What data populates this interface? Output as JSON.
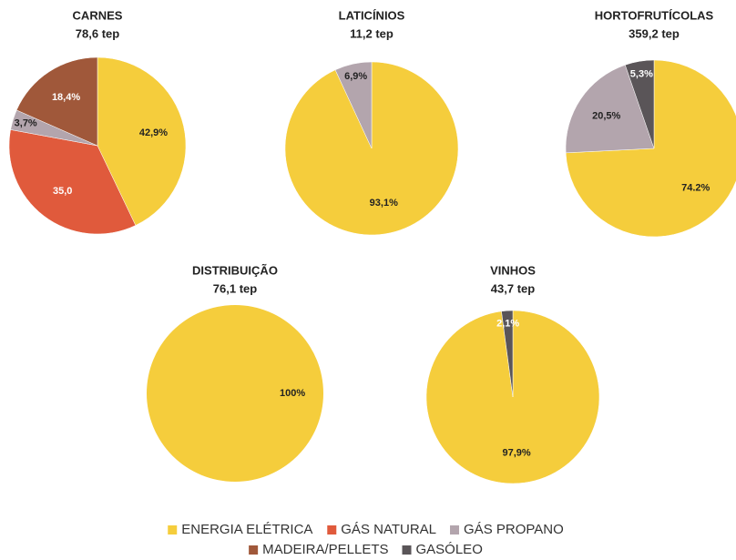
{
  "chart_data": [
    {
      "type": "pie",
      "title": "CARNES",
      "subtitle": "78,6 tep",
      "values": [
        42.9,
        35.0,
        3.7,
        18.4
      ],
      "value_labels": [
        "42,9%",
        "35,0",
        "3,7%",
        "18,4%"
      ],
      "colors": [
        "#f5cd3c",
        "#e05a3c",
        "#b3a5ad",
        "#a0583a"
      ]
    },
    {
      "type": "pie",
      "title": "LATICÍNIOS",
      "subtitle": "11,2 tep",
      "values": [
        93.1,
        6.9
      ],
      "value_labels": [
        "93,1%",
        "6,9%"
      ],
      "colors": [
        "#f5cd3c",
        "#b3a5ad"
      ]
    },
    {
      "type": "pie",
      "title": "HORTOFRUTÍCOLAS",
      "subtitle": "359,2 tep",
      "values": [
        74.2,
        20.5,
        5.3
      ],
      "value_labels": [
        "74.2%",
        "20,5%",
        "5,3%"
      ],
      "colors": [
        "#f5cd3c",
        "#b3a5ad",
        "#5a5558"
      ]
    },
    {
      "type": "pie",
      "title": "DISTRIBUIÇÃO",
      "subtitle": "76,1 tep",
      "values": [
        100
      ],
      "value_labels": [
        "100%"
      ],
      "colors": [
        "#f5cd3c"
      ]
    },
    {
      "type": "pie",
      "title": "VINHOS",
      "subtitle": "43,7 tep",
      "values": [
        97.9,
        2.1
      ],
      "value_labels": [
        "97,9%",
        "2,1%"
      ],
      "colors": [
        "#f5cd3c",
        "#5a5558"
      ]
    }
  ],
  "legend": {
    "items": [
      {
        "name": "ENERGIA ELÉTRICA",
        "color": "#f5cd3c"
      },
      {
        "name": "GÁS NATURAL",
        "color": "#e05a3c"
      },
      {
        "name": "GÁS PROPANO",
        "color": "#b3a5ad"
      },
      {
        "name": "MADEIRA/PELLETS",
        "color": "#a0583a"
      },
      {
        "name": "GASÓLEO",
        "color": "#5a5558"
      }
    ]
  }
}
